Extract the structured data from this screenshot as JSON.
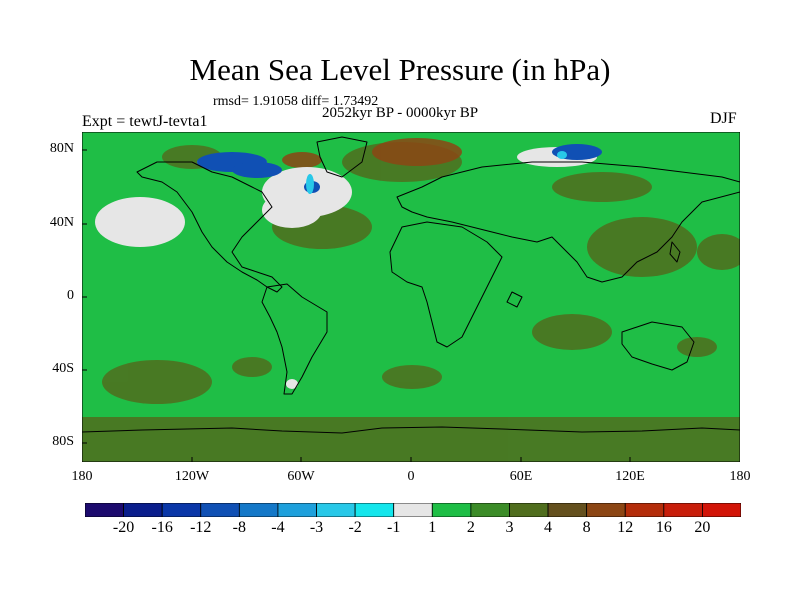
{
  "figure": {
    "title": "Mean Sea Level Pressure (in hPa)",
    "stats": "rmsd= 1.91058 diff= 1.73492",
    "period": "2052kyr BP - 0000kyr BP",
    "experiment": "Expt = tewtJ-tevta1",
    "season": "DJF"
  },
  "axes": {
    "lat_labels": [
      "80N",
      "40N",
      "0",
      "40S",
      "80S"
    ],
    "lon_labels": [
      "180",
      "120W",
      "60W",
      "0",
      "60E",
      "120E",
      "180"
    ]
  },
  "colorbar": {
    "labels": [
      "-20",
      "-16",
      "-12",
      "-8",
      "-4",
      "-3",
      "-2",
      "-1",
      "1",
      "2",
      "3",
      "4",
      "8",
      "12",
      "16",
      "20"
    ],
    "colors": [
      "#1c0a6e",
      "#0a1e8c",
      "#0a37a8",
      "#1050b4",
      "#1478c8",
      "#1ea0dc",
      "#28c8e8",
      "#14e6ec",
      "#e6e6e6",
      "#1fbe46",
      "#3c8c28",
      "#506e1e",
      "#64501e",
      "#8c4614",
      "#b42d0a",
      "#c81e0a",
      "#d21408"
    ]
  },
  "chart_data": {
    "type": "heatmap",
    "title": "Mean Sea Level Pressure (in hPa)",
    "variable": "MSLP difference",
    "units": "hPa",
    "season": "DJF",
    "rmsd": 1.91058,
    "diff": 1.73492,
    "lon_range": [
      -180,
      180
    ],
    "lat_range": [
      -90,
      90
    ],
    "dominant_level": "1 to 2",
    "color_levels": [
      -20,
      -16,
      -12,
      -8,
      -4,
      -3,
      -2,
      -1,
      1,
      2,
      3,
      4,
      8,
      12,
      16,
      20
    ]
  }
}
